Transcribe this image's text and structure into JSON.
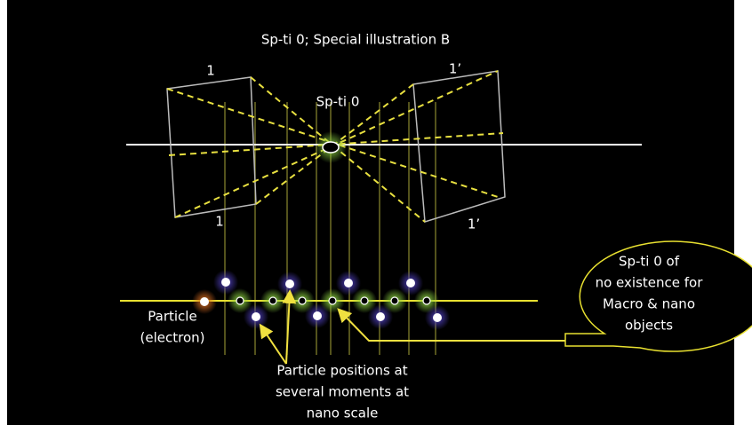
{
  "title": "Sp-ti 0; Special illustration  B",
  "labels": {
    "left_top": "1",
    "right_top": "1’",
    "center": "Sp-ti 0",
    "left_bottom": "1",
    "right_bottom": "1’"
  },
  "particle_label": [
    "Particle",
    "(electron)"
  ],
  "positions_label": [
    "Particle positions at",
    "several moments at",
    "nano scale"
  ],
  "callout": [
    "Sp-ti 0 of",
    "no existence for",
    "Macro & nano",
    "objects"
  ]
}
